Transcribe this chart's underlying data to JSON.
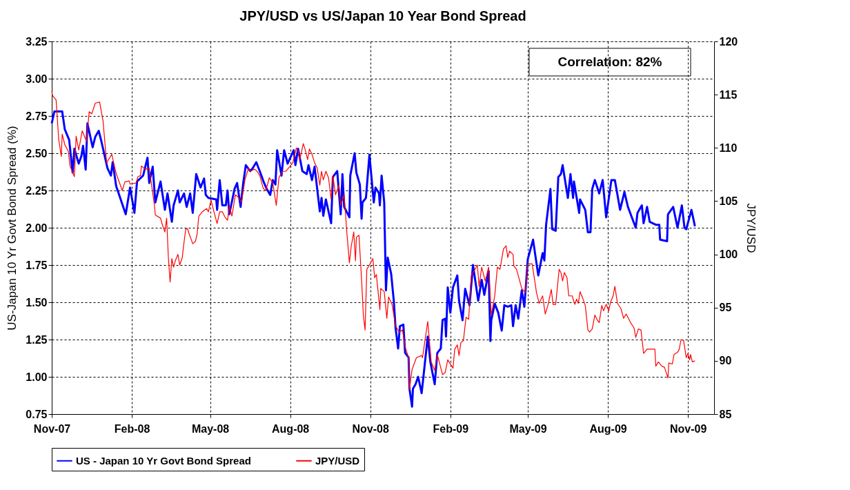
{
  "chart_data": {
    "type": "line",
    "title": "JPY/USD vs US/Japan 10 Year Bond Spread",
    "ylabel": "US-Japan 10 Yr Govt Bond Spread (%)",
    "y2label": "JPY/USD",
    "annotations": [
      "Correlation: 82%"
    ],
    "xlim": [
      "2007-11-01",
      "2009-12-01"
    ],
    "xticks": [
      {
        "value": "2007-11-01",
        "label": "Nov-07"
      },
      {
        "value": "2008-02-01",
        "label": "Feb-08"
      },
      {
        "value": "2008-05-01",
        "label": "May-08"
      },
      {
        "value": "2008-08-01",
        "label": "Aug-08"
      },
      {
        "value": "2008-11-01",
        "label": "Nov-08"
      },
      {
        "value": "2009-02-01",
        "label": "Feb-09"
      },
      {
        "value": "2009-05-01",
        "label": "May-09"
      },
      {
        "value": "2009-08-01",
        "label": "Aug-09"
      },
      {
        "value": "2009-11-01",
        "label": "Nov-09"
      }
    ],
    "ylim": [
      0.75,
      3.25
    ],
    "yticks": [
      {
        "value": 0.75,
        "label": "0.75"
      },
      {
        "value": 1,
        "label": "1.00"
      },
      1.25,
      {
        "value": 1.5,
        "label": "1.50"
      },
      1.75,
      {
        "value": 2,
        "label": "2.00"
      },
      2.25,
      {
        "value": 2.5,
        "label": "2.50"
      },
      2.75,
      {
        "value": 3,
        "label": "3.00"
      },
      3.25
    ],
    "y2lim": [
      85,
      120
    ],
    "y2ticks": [
      85,
      90,
      95,
      100,
      105,
      110,
      115,
      120
    ],
    "grid": true,
    "legend": "bottom",
    "line_style": "solid",
    "marker": "none",
    "series": [
      {
        "name": "US - Japan 10 Yr Govt Bond Spread",
        "color": "#0000ff",
        "axis": "y",
        "x": [
          "2007-11-01",
          "2007-11-04",
          "2007-11-13",
          "2007-11-16",
          "2007-11-21",
          "2007-11-25",
          "2007-11-27",
          "2007-12-02",
          "2007-12-05",
          "2007-12-07",
          "2007-12-10",
          "2007-12-12",
          "2007-12-18",
          "2007-12-21",
          "2007-12-25",
          "2007-12-28",
          "2008-01-04",
          "2008-01-08",
          "2008-01-10",
          "2008-01-14",
          "2008-01-25",
          "2008-01-30",
          "2008-02-04",
          "2008-02-07",
          "2008-02-14",
          "2008-02-19",
          "2008-02-21",
          "2008-02-25",
          "2008-02-28",
          "2008-03-05",
          "2008-03-10",
          "2008-03-13",
          "2008-03-18",
          "2008-03-20",
          "2008-03-25",
          "2008-03-27",
          "2008-04-01",
          "2008-04-04",
          "2008-04-08",
          "2008-04-11",
          "2008-04-15",
          "2008-04-20",
          "2008-04-24",
          "2008-04-26",
          "2008-04-29",
          "2008-05-08",
          "2008-05-09",
          "2008-05-12",
          "2008-05-15",
          "2008-05-19",
          "2008-05-21",
          "2008-05-23",
          "2008-05-29",
          "2008-06-01",
          "2008-06-05",
          "2008-06-08",
          "2008-06-11",
          "2008-06-16",
          "2008-06-19",
          "2008-06-23",
          "2008-06-27",
          "2008-07-02",
          "2008-07-05",
          "2008-07-09",
          "2008-07-12",
          "2008-07-15",
          "2008-07-17",
          "2008-07-22",
          "2008-07-25",
          "2008-07-29",
          "2008-08-05",
          "2008-08-07",
          "2008-08-10",
          "2008-08-15",
          "2008-08-20",
          "2008-08-22",
          "2008-08-26",
          "2008-08-29",
          "2008-09-04",
          "2008-09-06",
          "2008-09-08",
          "2008-09-11",
          "2008-09-17",
          "2008-09-19",
          "2008-09-24",
          "2008-09-28",
          "2008-09-30",
          "2008-10-02",
          "2008-10-08",
          "2008-10-09",
          "2008-10-14",
          "2008-10-16",
          "2008-10-20",
          "2008-10-22",
          "2008-10-23",
          "2008-10-27",
          "2008-10-31",
          "2008-11-05",
          "2008-11-07",
          "2008-11-11",
          "2008-11-12",
          "2008-11-14",
          "2008-11-17",
          "2008-11-19",
          "2008-11-21",
          "2008-11-25",
          "2008-11-28",
          "2008-11-30",
          "2008-12-03",
          "2008-12-05",
          "2008-12-09",
          "2008-12-11",
          "2008-12-15",
          "2008-12-16",
          "2008-12-19",
          "2008-12-20",
          "2008-12-23",
          "2008-12-26",
          "2008-12-30",
          "2009-01-06",
          "2009-01-09",
          "2009-01-14",
          "2009-01-17",
          "2009-01-21",
          "2009-01-23",
          "2009-01-26",
          "2009-01-27",
          "2009-01-29",
          "2009-02-01",
          "2009-02-04",
          "2009-02-09",
          "2009-02-11",
          "2009-02-15",
          "2009-02-18",
          "2009-02-23",
          "2009-02-27",
          "2009-03-05",
          "2009-03-09",
          "2009-03-12",
          "2009-03-17",
          "2009-03-19",
          "2009-03-20",
          "2009-03-24",
          "2009-03-28",
          "2009-04-01",
          "2009-04-04",
          "2009-04-08",
          "2009-04-12",
          "2009-04-14",
          "2009-04-17",
          "2009-04-20",
          "2009-04-24",
          "2009-04-27",
          "2009-05-01",
          "2009-05-07",
          "2009-05-13",
          "2009-05-18",
          "2009-05-20",
          "2009-05-22",
          "2009-05-27",
          "2009-05-29",
          "2009-06-02",
          "2009-06-05",
          "2009-06-08",
          "2009-06-10",
          "2009-06-16",
          "2009-06-19",
          "2009-06-22",
          "2009-06-23",
          "2009-06-29",
          "2009-06-30",
          "2009-07-06",
          "2009-07-09",
          "2009-07-12",
          "2009-07-14",
          "2009-07-17",
          "2009-07-22",
          "2009-07-26",
          "2009-07-30",
          "2009-08-05",
          "2009-08-09",
          "2009-08-12",
          "2009-08-15",
          "2009-08-20",
          "2009-08-24",
          "2009-09-02",
          "2009-09-04",
          "2009-09-09",
          "2009-09-11",
          "2009-09-15",
          "2009-09-18",
          "2009-09-25",
          "2009-09-29",
          "2009-09-30",
          "2009-10-08",
          "2009-10-09",
          "2009-10-15",
          "2009-10-20",
          "2009-10-25",
          "2009-10-28",
          "2009-10-30",
          "2009-11-05",
          "2009-11-09"
        ],
        "values": [
          2.7,
          2.78,
          2.78,
          2.66,
          2.59,
          2.37,
          2.53,
          2.43,
          2.48,
          2.55,
          2.39,
          2.7,
          2.54,
          2.61,
          2.65,
          2.58,
          2.4,
          2.35,
          2.44,
          2.28,
          2.09,
          2.27,
          2.1,
          2.31,
          2.35,
          2.47,
          2.3,
          2.41,
          2.17,
          2.31,
          2.12,
          2.23,
          2.04,
          2.15,
          2.25,
          2.17,
          2.23,
          2.14,
          2.23,
          2.1,
          2.36,
          2.27,
          2.33,
          2.22,
          2.2,
          2.19,
          2.12,
          2.32,
          2.15,
          2.15,
          2.25,
          2.09,
          2.26,
          2.3,
          2.14,
          2.3,
          2.42,
          2.38,
          2.4,
          2.44,
          2.38,
          2.3,
          2.26,
          2.22,
          2.32,
          2.29,
          2.52,
          2.35,
          2.52,
          2.43,
          2.52,
          2.42,
          2.53,
          2.38,
          2.36,
          2.42,
          2.32,
          2.41,
          2.11,
          2.2,
          2.08,
          2.19,
          2.03,
          2.34,
          2.38,
          2.09,
          2.36,
          2.14,
          2.07,
          2.35,
          2.5,
          2.37,
          2.29,
          2.06,
          2.17,
          2.2,
          2.49,
          2.17,
          2.27,
          2.23,
          2.15,
          2.35,
          2.17,
          1.58,
          1.8,
          1.69,
          1.51,
          1.33,
          1.19,
          1.34,
          1.35,
          1.16,
          1.13,
          0.92,
          0.8,
          0.92,
          0.95,
          1.0,
          0.89,
          1.27,
          1.1,
          0.95,
          1.16,
          1.19,
          1.38,
          1.39,
          1.27,
          1.6,
          1.43,
          1.6,
          1.68,
          1.51,
          1.38,
          1.59,
          1.48,
          1.75,
          1.51,
          1.65,
          1.55,
          1.71,
          1.24,
          1.38,
          1.49,
          1.43,
          1.31,
          1.48,
          1.47,
          1.48,
          1.34,
          1.48,
          1.39,
          1.58,
          1.47,
          1.79,
          1.92,
          1.68,
          1.83,
          1.78,
          2.02,
          2.26,
          1.99,
          1.98,
          2.34,
          2.36,
          2.42,
          2.2,
          2.36,
          2.2,
          2.31,
          2.1,
          2.19,
          2.12,
          1.97,
          1.97,
          2.26,
          2.32,
          2.23,
          2.32,
          2.07,
          2.32,
          2.32,
          2.22,
          2.12,
          2.24,
          2.14,
          2.0,
          2.1,
          2.15,
          2.03,
          2.14,
          2.04,
          2.02,
          2.02,
          1.92,
          1.91,
          2.09,
          2.14,
          2.0,
          2.15,
          2.0,
          1.99,
          2.12,
          2.01
        ]
      },
      {
        "name": "JPY/USD",
        "color": "#ff0000",
        "axis": "y2",
        "x": [
          "2007-11-01",
          "2007-11-02",
          "2007-11-06",
          "2007-11-09",
          "2007-11-12",
          "2007-11-13",
          "2007-11-16",
          "2007-11-20",
          "2007-11-22",
          "2007-11-27",
          "2007-11-29",
          "2007-12-02",
          "2007-12-06",
          "2007-12-11",
          "2007-12-14",
          "2007-12-17",
          "2007-12-21",
          "2007-12-26",
          "2007-12-30",
          "2008-01-03",
          "2008-01-09",
          "2008-01-14",
          "2008-01-21",
          "2008-01-24",
          "2008-01-29",
          "2008-01-30",
          "2008-02-06",
          "2008-02-08",
          "2008-02-11",
          "2008-02-12",
          "2008-02-17",
          "2008-02-21",
          "2008-02-27",
          "2008-02-28",
          "2008-03-05",
          "2008-03-07",
          "2008-03-10",
          "2008-03-12",
          "2008-03-14",
          "2008-03-16",
          "2008-03-18",
          "2008-03-20",
          "2008-03-22",
          "2008-03-25",
          "2008-03-27",
          "2008-03-30",
          "2008-03-31",
          "2008-04-03",
          "2008-04-05",
          "2008-04-07",
          "2008-04-11",
          "2008-04-14",
          "2008-04-16",
          "2008-04-18",
          "2008-04-22",
          "2008-04-27",
          "2008-04-29",
          "2008-05-02",
          "2008-05-06",
          "2008-05-09",
          "2008-05-12",
          "2008-05-15",
          "2008-05-18",
          "2008-05-21",
          "2008-05-23",
          "2008-05-26",
          "2008-05-30",
          "2008-06-02",
          "2008-06-06",
          "2008-06-10",
          "2008-06-14",
          "2008-06-16",
          "2008-06-21",
          "2008-06-24",
          "2008-06-27",
          "2008-07-01",
          "2008-07-04",
          "2008-07-08",
          "2008-07-12",
          "2008-07-16",
          "2008-07-19",
          "2008-07-23",
          "2008-07-27",
          "2008-07-31",
          "2008-08-04",
          "2008-08-08",
          "2008-08-10",
          "2008-08-12",
          "2008-08-16",
          "2008-08-18",
          "2008-08-21",
          "2008-08-23",
          "2008-08-26",
          "2008-08-29",
          "2008-09-01",
          "2008-09-04",
          "2008-09-06",
          "2008-09-08",
          "2008-09-11",
          "2008-09-14",
          "2008-09-17",
          "2008-09-19",
          "2008-09-22",
          "2008-09-26",
          "2008-09-28",
          "2008-10-02",
          "2008-10-05",
          "2008-10-08",
          "2008-10-10",
          "2008-10-13",
          "2008-10-15",
          "2008-10-16",
          "2008-10-19",
          "2008-10-22",
          "2008-10-24",
          "2008-10-26",
          "2008-10-28",
          "2008-10-31",
          "2008-11-04",
          "2008-11-06",
          "2008-11-08",
          "2008-11-12",
          "2008-11-13",
          "2008-11-17",
          "2008-11-20",
          "2008-11-22",
          "2008-11-26",
          "2008-11-30",
          "2008-12-04",
          "2008-12-08",
          "2008-12-11",
          "2008-12-15",
          "2008-12-16",
          "2008-12-19",
          "2008-12-24",
          "2008-12-30",
          "2008-12-31",
          "2009-01-06",
          "2009-01-10",
          "2009-01-14",
          "2009-01-17",
          "2009-01-23",
          "2009-01-26",
          "2009-01-29",
          "2009-02-04",
          "2009-02-06",
          "2009-02-09",
          "2009-02-11",
          "2009-02-13",
          "2009-02-16",
          "2009-02-19",
          "2009-02-22",
          "2009-02-25",
          "2009-02-28",
          "2009-03-04",
          "2009-03-06",
          "2009-03-09",
          "2009-03-13",
          "2009-03-17",
          "2009-03-20",
          "2009-03-24",
          "2009-03-27",
          "2009-03-30",
          "2009-04-03",
          "2009-04-06",
          "2009-04-08",
          "2009-04-10",
          "2009-04-14",
          "2009-04-15",
          "2009-04-18",
          "2009-04-20",
          "2009-04-24",
          "2009-04-28",
          "2009-05-01",
          "2009-05-06",
          "2009-05-11",
          "2009-05-14",
          "2009-05-18",
          "2009-05-21",
          "2009-05-24",
          "2009-05-28",
          "2009-05-30",
          "2009-06-02",
          "2009-06-06",
          "2009-06-08",
          "2009-06-10",
          "2009-06-12",
          "2009-06-15",
          "2009-06-17",
          "2009-06-21",
          "2009-06-24",
          "2009-06-26",
          "2009-06-28",
          "2009-06-30",
          "2009-07-03",
          "2009-07-06",
          "2009-07-09",
          "2009-07-11",
          "2009-07-14",
          "2009-07-17",
          "2009-07-20",
          "2009-07-22",
          "2009-07-25",
          "2009-07-27",
          "2009-07-30",
          "2009-08-02",
          "2009-08-04",
          "2009-08-07",
          "2009-08-09",
          "2009-08-12",
          "2009-08-16",
          "2009-08-19",
          "2009-08-22",
          "2009-08-27",
          "2009-08-31",
          "2009-09-02",
          "2009-09-05",
          "2009-09-08",
          "2009-09-11",
          "2009-09-15",
          "2009-09-18",
          "2009-09-24",
          "2009-09-25",
          "2009-09-28",
          "2009-10-02",
          "2009-10-05",
          "2009-10-09",
          "2009-10-10",
          "2009-10-14",
          "2009-10-16",
          "2009-10-20",
          "2009-10-22",
          "2009-10-24",
          "2009-10-27",
          "2009-10-30",
          "2009-11-01",
          "2009-11-03",
          "2009-11-04",
          "2009-11-06",
          "2009-11-09"
        ],
        "values": [
          115.3,
          114.9,
          114.5,
          110.8,
          109.2,
          111.3,
          110.3,
          109.7,
          108.3,
          107.3,
          111.1,
          109.8,
          111.6,
          110.6,
          113.4,
          113.2,
          114.2,
          114.3,
          112.5,
          108.6,
          109.4,
          107.6,
          106.0,
          106.8,
          106.9,
          106.6,
          106.7,
          107.3,
          107.4,
          108.3,
          108.0,
          108.1,
          104.6,
          103.7,
          103.4,
          102.8,
          102.1,
          103.4,
          99.7,
          97.4,
          99.6,
          98.8,
          99.4,
          100.0,
          99.0,
          99.7,
          100.5,
          102.4,
          102.4,
          101.9,
          101.0,
          101.2,
          101.9,
          103.6,
          104.0,
          104.3,
          104.0,
          105.1,
          103.8,
          102.9,
          104.0,
          104.0,
          103.5,
          103.2,
          104.6,
          103.6,
          105.6,
          105.4,
          104.9,
          107.0,
          108.1,
          107.8,
          108.0,
          107.8,
          107.4,
          106.2,
          106.0,
          107.2,
          106.7,
          104.6,
          107.2,
          107.8,
          107.8,
          108.2,
          108.6,
          110.0,
          109.7,
          108.9,
          110.4,
          109.9,
          108.9,
          109.9,
          109.4,
          108.6,
          108.1,
          106.5,
          107.8,
          107.0,
          107.8,
          107.2,
          105.2,
          107.4,
          105.6,
          106.5,
          104.6,
          105.6,
          102.1,
          99.2,
          100.7,
          102.1,
          99.4,
          101.6,
          101.8,
          97.6,
          94.3,
          92.9,
          98.6,
          99.0,
          99.6,
          97.8,
          98.1,
          94.8,
          96.8,
          96.5,
          94.0,
          96.0,
          95.3,
          93.3,
          92.7,
          92.9,
          91.3,
          90.3,
          87.3,
          89.2,
          90.3,
          90.5,
          90.3,
          93.7,
          89.9,
          89.1,
          90.6,
          88.7,
          88.9,
          90.1,
          89.3,
          91.1,
          91.5,
          90.5,
          91.7,
          91.9,
          94.1,
          93.9,
          98.0,
          98.4,
          99.0,
          97.0,
          98.8,
          97.5,
          98.8,
          94.3,
          96.1,
          98.8,
          98.6,
          100.5,
          100.8,
          99.7,
          100.3,
          100.0,
          98.9,
          98.6,
          98.0,
          96.8,
          96.4,
          99.1,
          99.1,
          96.4,
          95.4,
          96.1,
          94.4,
          95.2,
          96.7,
          95.3,
          95.3,
          98.6,
          98.3,
          97.5,
          98.3,
          97.8,
          96.1,
          96.1,
          95.3,
          95.8,
          95.4,
          96.5,
          95.9,
          95.2,
          92.9,
          92.7,
          93.0,
          94.3,
          93.8,
          93.6,
          95.2,
          94.7,
          95.3,
          94.7,
          95.5,
          96.1,
          97.0,
          95.4,
          94.9,
          94.0,
          94.4,
          93.6,
          93.1,
          92.2,
          93.0,
          92.9,
          90.7,
          91.1,
          91.1,
          91.1,
          89.5,
          89.9,
          89.5,
          89.4,
          88.4,
          89.8,
          89.7,
          90.6,
          90.8,
          91.1,
          92.0,
          91.9,
          90.3,
          90.7,
          90.1,
          90.6,
          89.9,
          90.0
        ]
      }
    ]
  }
}
